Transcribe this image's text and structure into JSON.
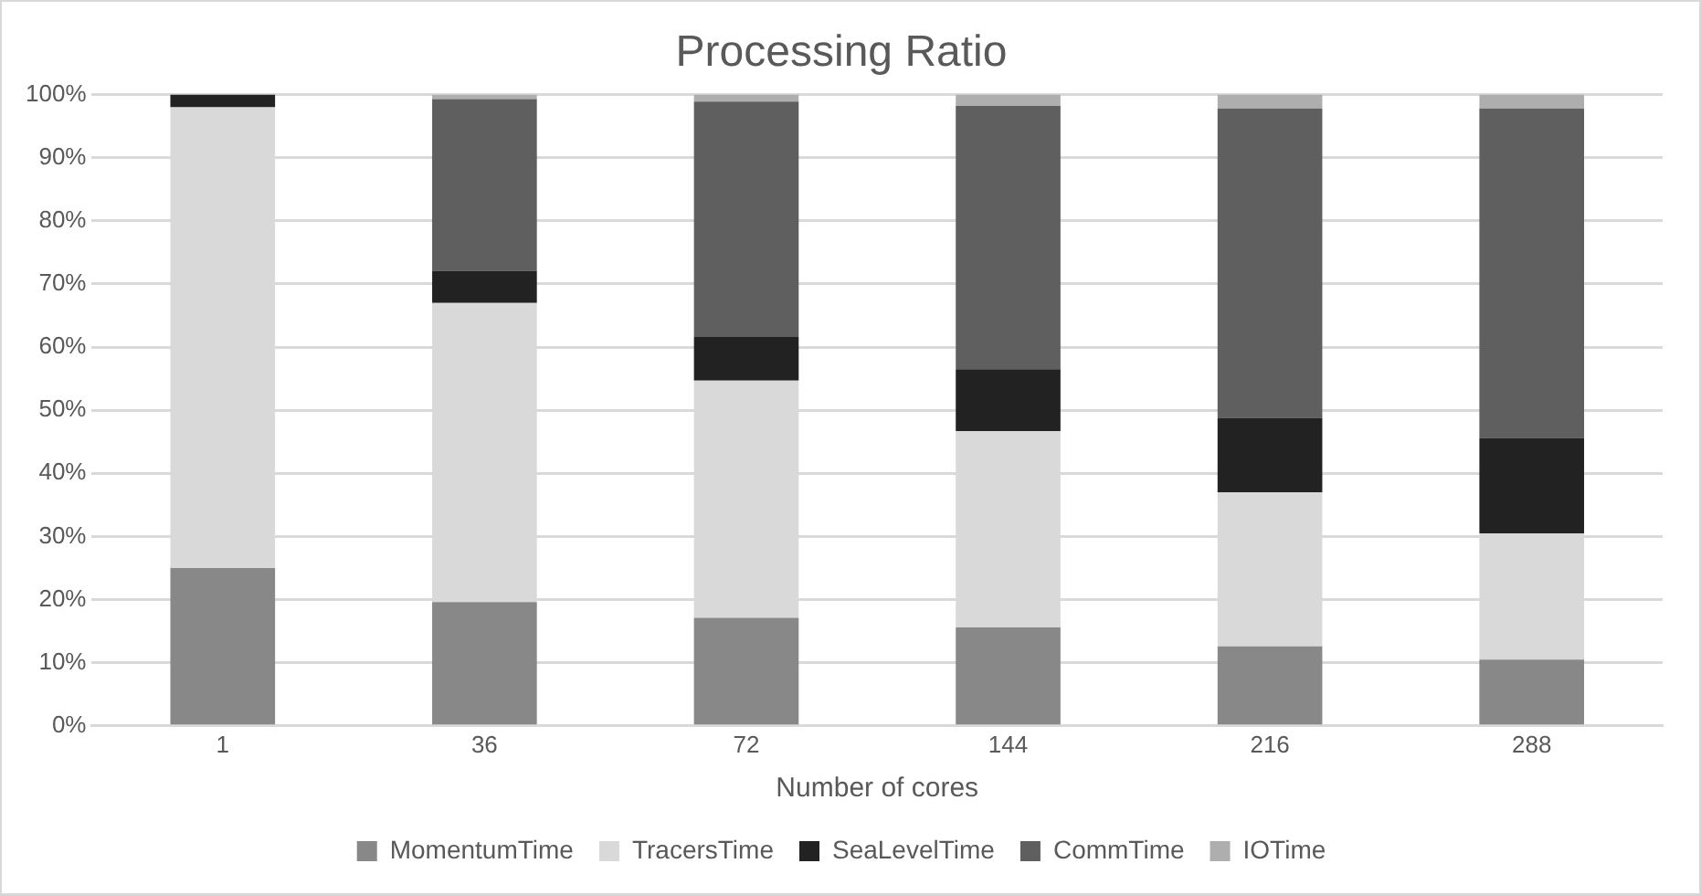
{
  "chart_data": {
    "type": "bar",
    "title": "Processing Ratio",
    "xlabel": "Number of cores",
    "categories": [
      "1",
      "36",
      "72",
      "144",
      "216",
      "288"
    ],
    "stacked": true,
    "series": [
      {
        "name": "MomentumTime",
        "color": "#888888",
        "values": [
          25,
          19.6,
          17.1,
          15.6,
          12.6,
          10.5
        ]
      },
      {
        "name": "TracersTime",
        "color": "#d9d9d9",
        "values": [
          73,
          47.4,
          37.6,
          31.1,
          24.4,
          20.0
        ]
      },
      {
        "name": "SeaLevelTime",
        "color": "#222222",
        "values": [
          2,
          5.1,
          6.9,
          9.8,
          11.8,
          15.1
        ]
      },
      {
        "name": "CommTime",
        "color": "#5f5f5f",
        "values": [
          0,
          27.2,
          37.3,
          41.7,
          49.0,
          52.2
        ]
      },
      {
        "name": "IOTime",
        "color": "#aeaeae",
        "values": [
          0,
          0.7,
          1.1,
          1.8,
          2.2,
          2.2
        ]
      }
    ],
    "ylim": [
      0,
      100
    ],
    "yticks": [
      {
        "value": 0,
        "label": "0%"
      },
      {
        "value": 10,
        "label": "10%"
      },
      {
        "value": 20,
        "label": "20%"
      },
      {
        "value": 30,
        "label": "30%"
      },
      {
        "value": 40,
        "label": "40%"
      },
      {
        "value": 50,
        "label": "50%"
      },
      {
        "value": 60,
        "label": "60%"
      },
      {
        "value": 70,
        "label": "70%"
      },
      {
        "value": 80,
        "label": "80%"
      },
      {
        "value": 90,
        "label": "90%"
      },
      {
        "value": 100,
        "label": "100%"
      }
    ],
    "grid": "y",
    "legend": "bottom"
  }
}
